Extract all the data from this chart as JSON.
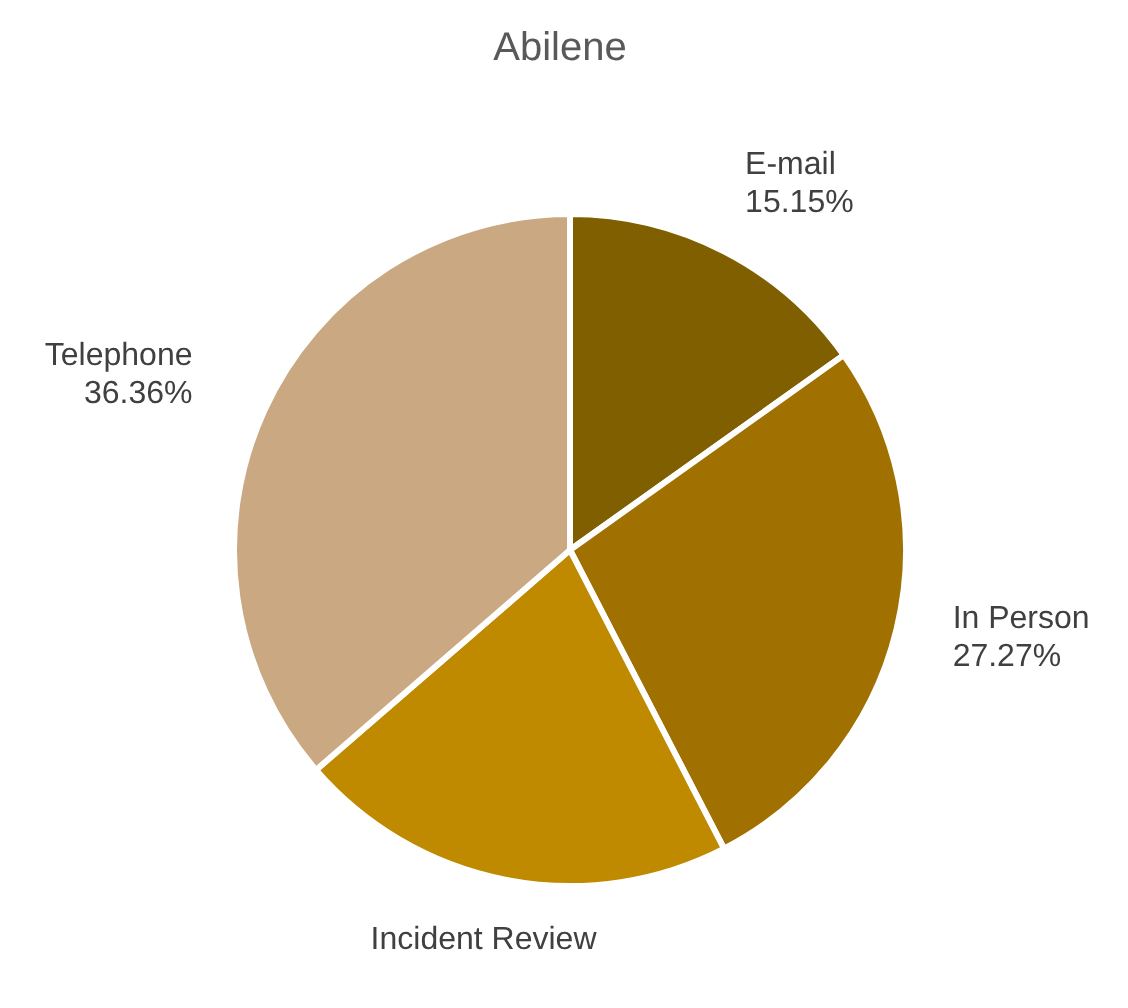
{
  "chart_data": {
    "type": "pie",
    "title": "Abilene",
    "categories": [
      "E-mail",
      "In Person",
      "Incident Review",
      "Telephone"
    ],
    "values": [
      15.15,
      27.27,
      21.22,
      36.36
    ],
    "value_labels": [
      "15.15%",
      "27.27%",
      null,
      "36.36%"
    ],
    "colors": [
      "#7f5f00",
      "#a07100",
      "#bf8a00",
      "#c9a882"
    ],
    "legend": false
  }
}
